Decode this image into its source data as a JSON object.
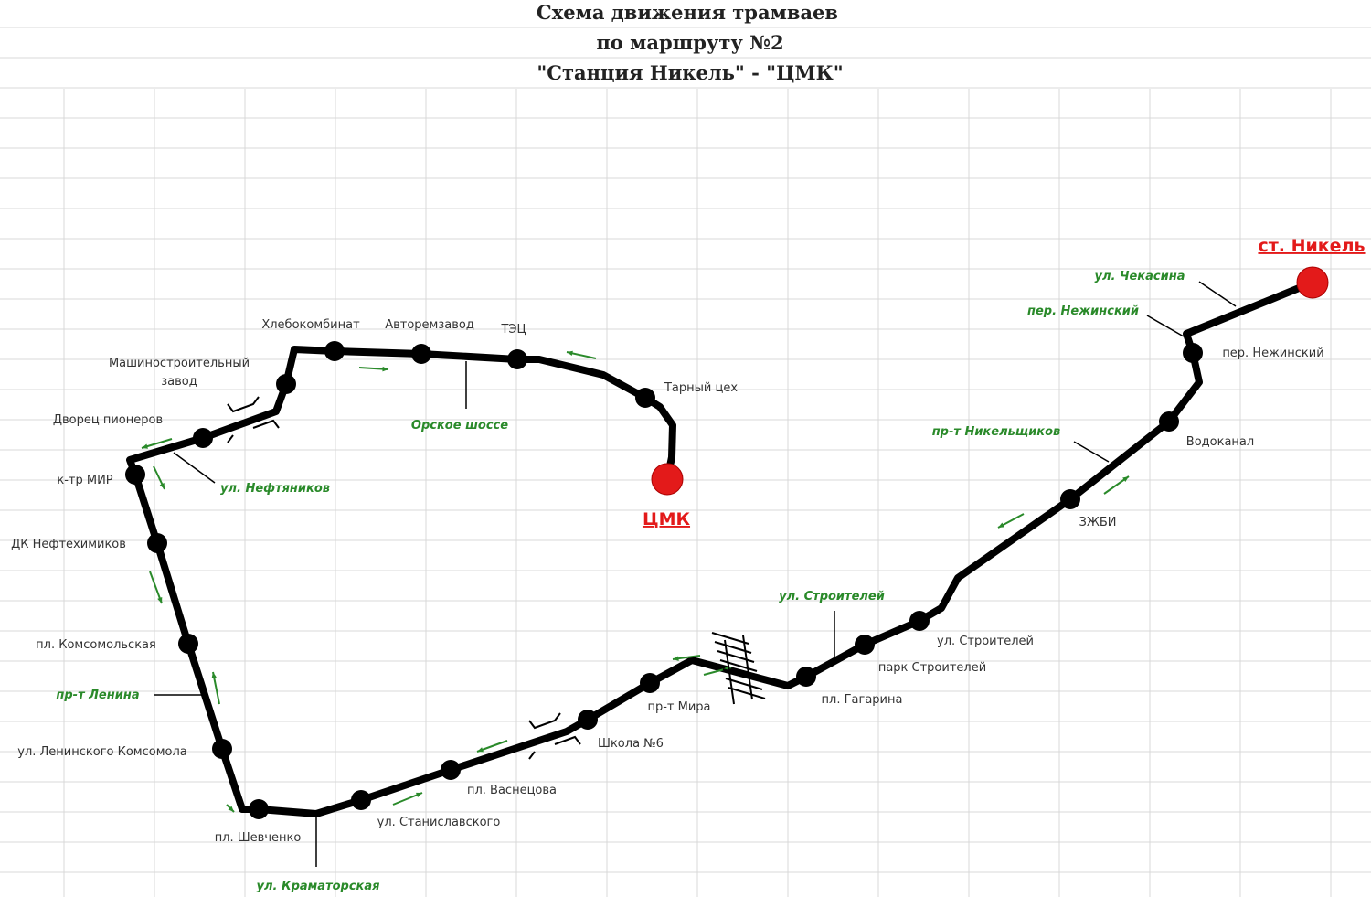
{
  "title": [
    "Схема движения трамваев",
    "по маршруту  №2",
    "\"Станция Никель\" - \"ЦМК\""
  ],
  "terminals": [
    {
      "name": "ЦМК"
    },
    {
      "name": "ст. Никель"
    }
  ],
  "stops": [
    {
      "name": "Хлебокомбинат"
    },
    {
      "name": "Авторемзавод"
    },
    {
      "name": "ТЭЦ"
    },
    {
      "name": "Тарный цех"
    },
    {
      "name": [
        "Машиностроительный",
        "завод"
      ]
    },
    {
      "name": "Дворец пионеров"
    },
    {
      "name": "к-тр МИР"
    },
    {
      "name": "ДК Нефтехимиков"
    },
    {
      "name": "пл. Комсомольская"
    },
    {
      "name": "ул. Ленинского Комсомола"
    },
    {
      "name": "пл. Шевченко"
    },
    {
      "name": "ул. Станиславского"
    },
    {
      "name": "пл. Васнецова"
    },
    {
      "name": "Школа №6"
    },
    {
      "name": "пр-т Мира"
    },
    {
      "name": "пл. Гагарина"
    },
    {
      "name": "парк Строителей"
    },
    {
      "name": "ул. Строителей"
    },
    {
      "name": "ЗЖБИ"
    },
    {
      "name": "Водоканал"
    },
    {
      "name": "пер. Нежинский"
    }
  ],
  "streets": [
    {
      "name": "Орское шоссе"
    },
    {
      "name": "ул. Нефтяников"
    },
    {
      "name": "пр-т Ленина"
    },
    {
      "name": "ул. Краматорская"
    },
    {
      "name": "ул. Строителей"
    },
    {
      "name": "пр-т Никельщиков"
    },
    {
      "name": "пер. Нежинский"
    },
    {
      "name": "ул. Чекасина"
    }
  ]
}
